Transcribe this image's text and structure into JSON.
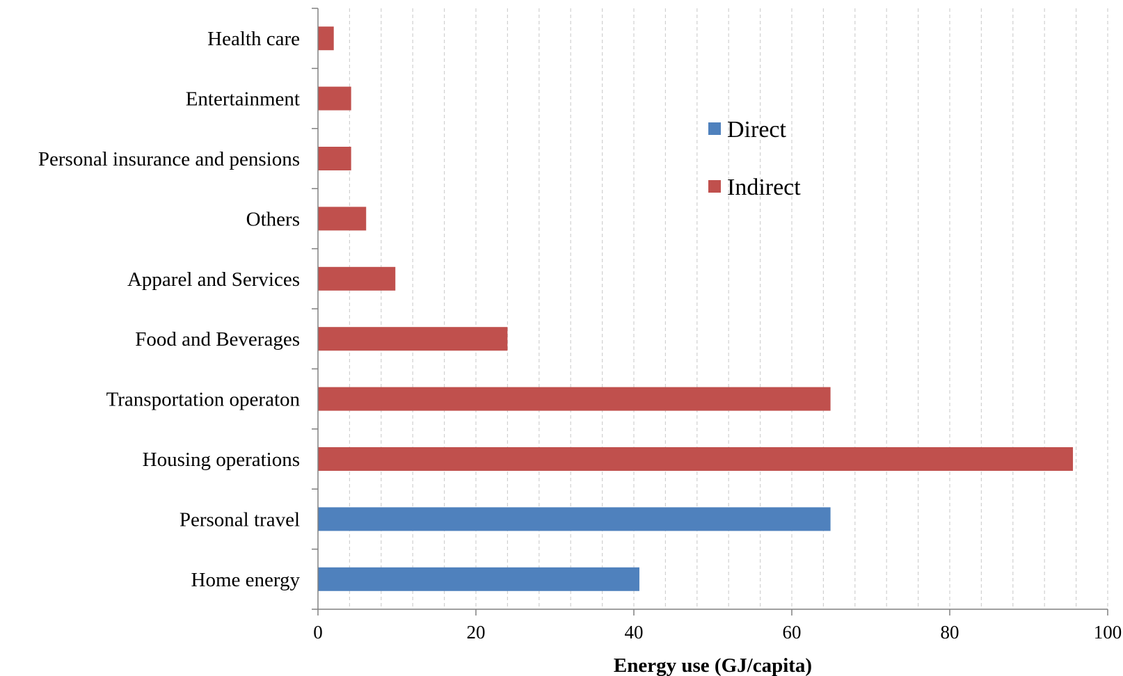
{
  "chart_data": {
    "type": "bar",
    "orientation": "horizontal",
    "categories": [
      "Home energy",
      "Personal travel",
      "Housing operations",
      "Transportation operaton",
      "Food and Beverages",
      "Apparel and Services",
      "Others",
      "Personal insurance and pensions",
      "Entertainment",
      "Health care"
    ],
    "values": [
      40.7,
      64.9,
      95.6,
      64.9,
      24.0,
      9.8,
      6.1,
      4.2,
      4.2,
      2.0
    ],
    "bar_series": [
      "Direct",
      "Direct",
      "Indirect",
      "Indirect",
      "Indirect",
      "Indirect",
      "Indirect",
      "Indirect",
      "Indirect",
      "Indirect"
    ],
    "series": [
      {
        "name": "Direct",
        "color": "#4f81bd"
      },
      {
        "name": "Indirect",
        "color": "#c0504d"
      }
    ],
    "title": "",
    "xlabel": "Energy use (GJ/capita)",
    "ylabel": "",
    "xlim": [
      0,
      100
    ],
    "x_ticks": [
      0,
      20,
      40,
      60,
      80,
      100
    ],
    "minor_gridline_step": 4,
    "grid": "vertical dashed minor gridlines",
    "legend_position": "upper-right inside plot"
  }
}
